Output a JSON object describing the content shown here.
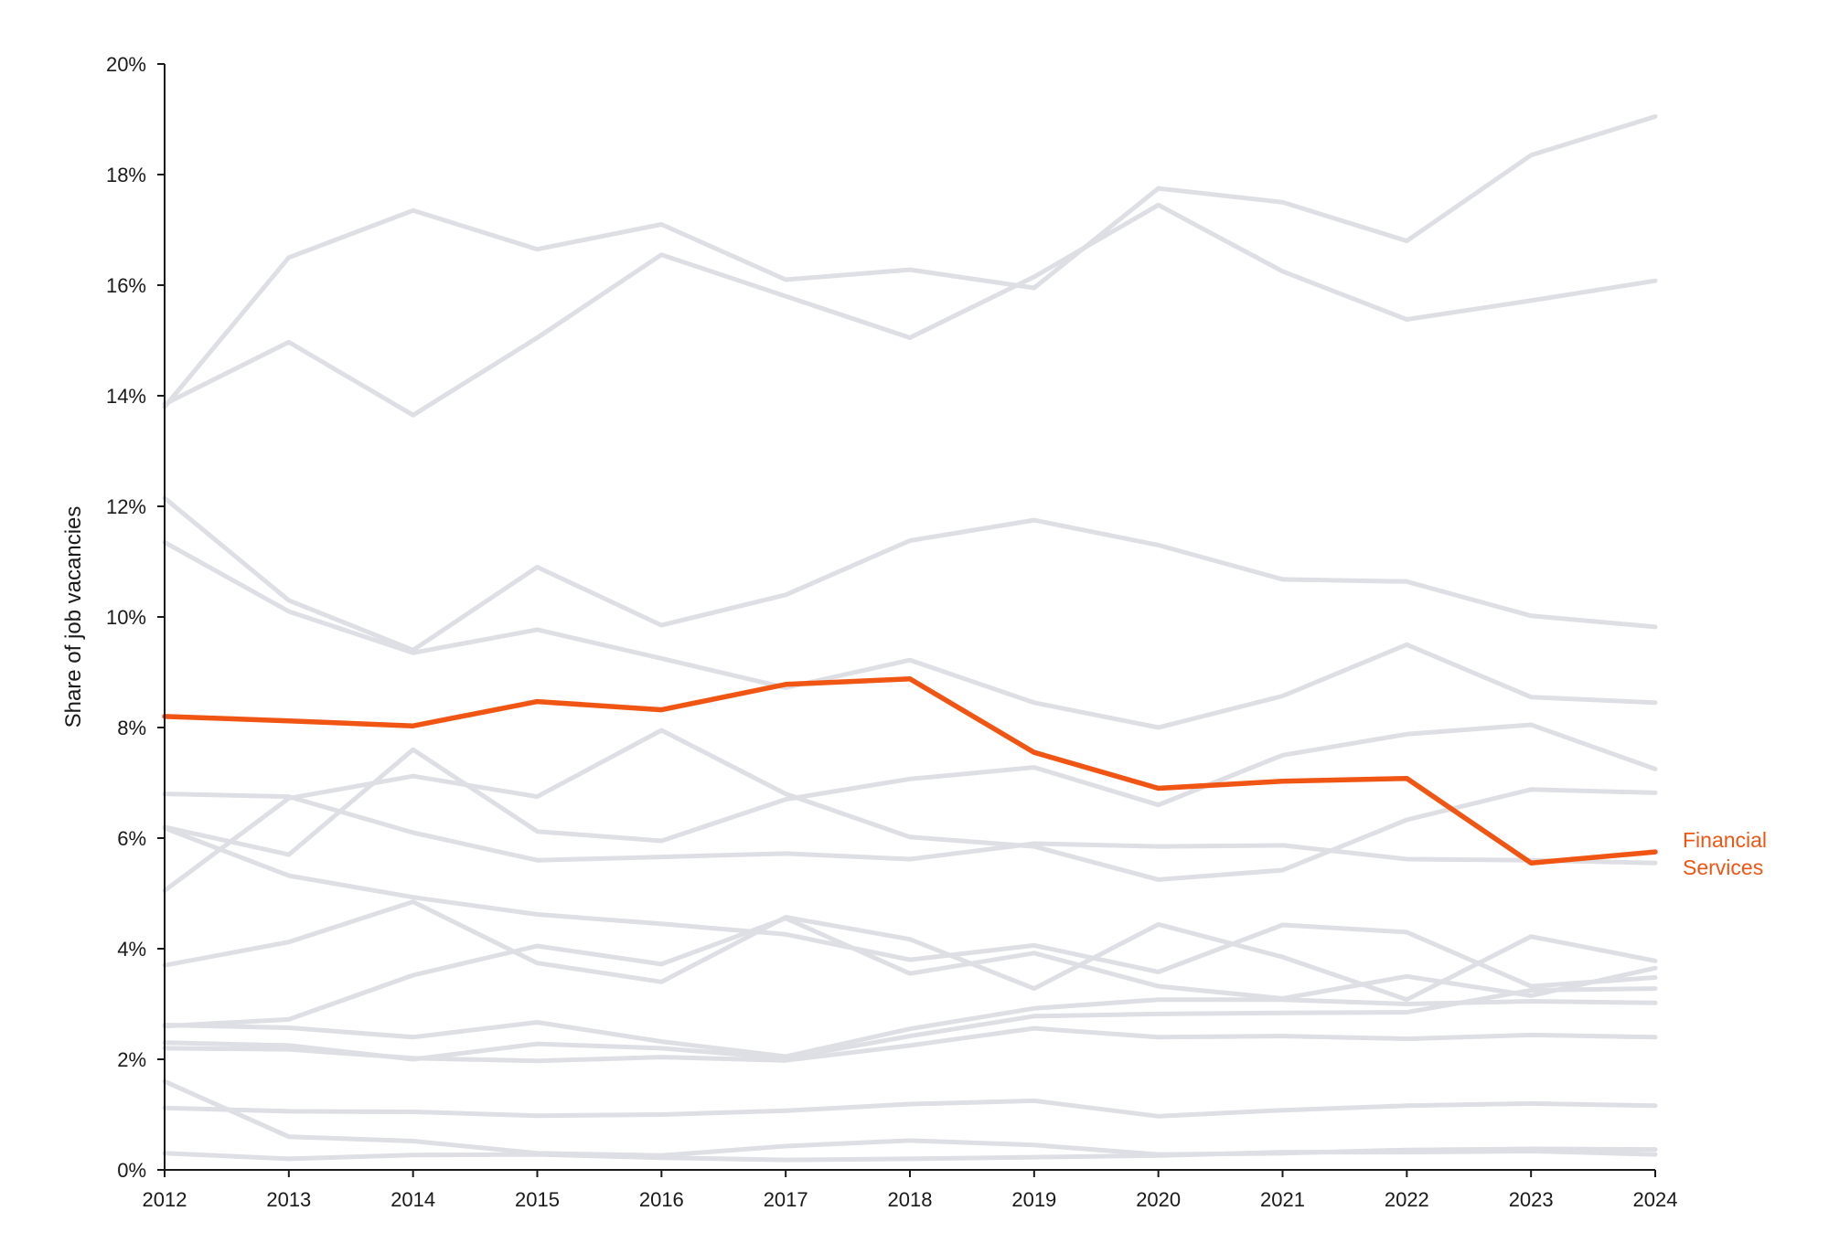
{
  "chart_data": {
    "type": "line",
    "title": "",
    "xlabel": "",
    "ylabel": "Share of job vacancies",
    "x": [
      "2012",
      "2013",
      "2014",
      "2015",
      "2016",
      "2017",
      "2018",
      "2019",
      "2020",
      "2021",
      "2022",
      "2023",
      "2024"
    ],
    "ylim": [
      0,
      20
    ],
    "yticks": [
      0,
      2,
      4,
      6,
      8,
      10,
      12,
      14,
      16,
      18,
      20
    ],
    "ytick_labels": [
      "0%",
      "2%",
      "4%",
      "6%",
      "8%",
      "10%",
      "12%",
      "14%",
      "16%",
      "18%",
      "20%"
    ],
    "grid": false,
    "legend": "none",
    "colors": {
      "background_series": "#dedfe4",
      "highlight": "#f05514",
      "axis": "#1a1a1a"
    },
    "highlight_label_line1": "Financial",
    "highlight_label_line2": "Services",
    "series": [
      {
        "highlight": true,
        "values": [
          8.2,
          8.12,
          8.03,
          8.47,
          8.32,
          8.78,
          8.88,
          7.55,
          6.9,
          7.03,
          7.08,
          5.55,
          5.75
        ]
      },
      {
        "values": [
          13.8,
          16.5,
          17.35,
          16.65,
          17.1,
          16.1,
          16.28,
          15.95,
          17.75,
          17.5,
          16.8,
          18.35,
          19.05
        ]
      },
      {
        "values": [
          13.85,
          14.97,
          13.65,
          15.05,
          16.55,
          15.8,
          15.05,
          16.15,
          17.45,
          16.25,
          15.38,
          15.72,
          16.08
        ]
      },
      {
        "values": [
          12.15,
          10.3,
          9.4,
          10.9,
          9.85,
          10.4,
          11.38,
          11.75,
          11.3,
          10.68,
          10.64,
          10.02,
          9.82
        ]
      },
      {
        "values": [
          11.35,
          10.1,
          9.35,
          9.77,
          9.25,
          8.72,
          9.22,
          8.45,
          8.0,
          8.57,
          9.5,
          8.55,
          8.45
        ]
      },
      {
        "values": [
          6.8,
          6.75,
          6.1,
          5.6,
          5.66,
          5.72,
          5.62,
          5.9,
          5.85,
          5.87,
          5.62,
          5.6,
          5.55
        ]
      },
      {
        "values": [
          6.2,
          5.7,
          7.6,
          6.12,
          5.95,
          6.7,
          7.07,
          7.28,
          6.6,
          7.5,
          7.88,
          8.05,
          7.25
        ]
      },
      {
        "values": [
          5.05,
          6.72,
          7.12,
          6.75,
          7.95,
          6.8,
          6.02,
          5.85,
          5.25,
          5.42,
          6.33,
          6.88,
          6.82
        ]
      },
      {
        "values": [
          6.18,
          5.32,
          4.93,
          4.62,
          4.45,
          4.26,
          3.8,
          4.06,
          3.58,
          4.43,
          4.3,
          3.32,
          3.48
        ]
      },
      {
        "values": [
          3.7,
          4.12,
          4.85,
          3.74,
          3.4,
          4.57,
          4.17,
          3.28,
          4.44,
          3.85,
          3.08,
          4.22,
          3.78
        ]
      },
      {
        "values": [
          2.6,
          2.72,
          3.52,
          4.05,
          3.72,
          4.55,
          3.55,
          3.92,
          3.32,
          3.1,
          3.5,
          3.15,
          3.65
        ]
      },
      {
        "values": [
          2.62,
          2.57,
          2.4,
          2.67,
          2.32,
          2.05,
          2.55,
          2.92,
          3.08,
          3.08,
          3.0,
          3.05,
          3.02
        ]
      },
      {
        "values": [
          2.3,
          2.25,
          2.0,
          2.28,
          2.2,
          2.02,
          2.42,
          2.78,
          2.82,
          2.84,
          2.85,
          3.25,
          3.28
        ]
      },
      {
        "values": [
          2.2,
          2.18,
          2.02,
          1.97,
          2.04,
          1.98,
          2.25,
          2.56,
          2.4,
          2.42,
          2.37,
          2.44,
          2.4
        ]
      },
      {
        "values": [
          1.12,
          1.06,
          1.05,
          0.98,
          1.0,
          1.07,
          1.19,
          1.25,
          0.97,
          1.08,
          1.16,
          1.2,
          1.16
        ]
      },
      {
        "values": [
          1.6,
          0.6,
          0.52,
          0.3,
          0.26,
          0.43,
          0.53,
          0.45,
          0.28,
          0.3,
          0.36,
          0.38,
          0.37
        ]
      },
      {
        "values": [
          0.3,
          0.2,
          0.27,
          0.28,
          0.22,
          0.18,
          0.2,
          0.23,
          0.26,
          0.32,
          0.32,
          0.34,
          0.28
        ]
      }
    ]
  }
}
